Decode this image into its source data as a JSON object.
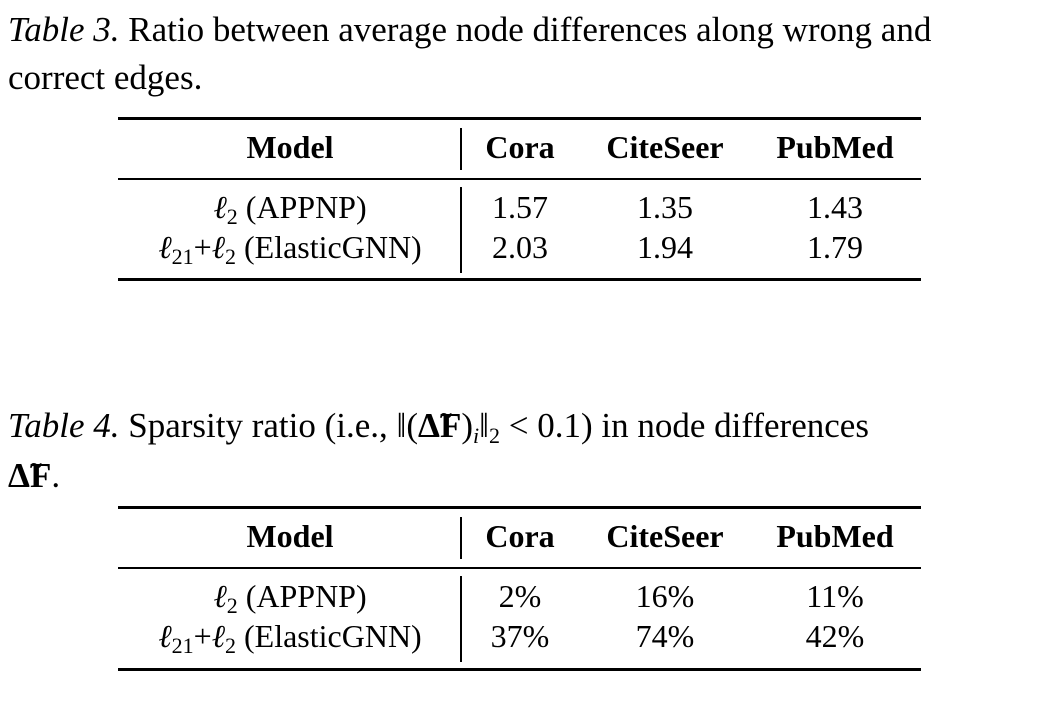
{
  "tables": [
    {
      "label": "Table 3.",
      "caption_line1": " Ratio between average node differences along wrong and",
      "caption_line2": "correct edges.",
      "headers": [
        "Model",
        "Cora",
        "CiteSeer",
        "PubMed"
      ],
      "rows": [
        {
          "model": {
            "s1": "ℓ",
            "sub1": "2",
            "plus": "",
            "s2": "",
            "sub2": "",
            "name": " (APPNP)"
          },
          "values": [
            "1.57",
            "1.35",
            "1.43"
          ]
        },
        {
          "model": {
            "s1": "ℓ",
            "sub1": "21",
            "plus": "+",
            "s2": "ℓ",
            "sub2": "2",
            "name": " (ElasticGNN)"
          },
          "values": [
            "2.03",
            "1.94",
            "1.79"
          ]
        }
      ]
    },
    {
      "label": "Table 4.",
      "caption_line1_pre": " Sparsity ratio (i.e., ‖(",
      "caption_math_delta": "Δ̃F",
      "caption_math_sub": "i",
      "caption_line1_post": "‖",
      "caption_norm_sub": "2",
      "caption_line1_end": " < 0.1) in node differences",
      "caption_line2_math": "Δ̃F",
      "caption_line2_end": ".",
      "headers": [
        "Model",
        "Cora",
        "CiteSeer",
        "PubMed"
      ],
      "rows": [
        {
          "model": {
            "s1": "ℓ",
            "sub1": "2",
            "plus": "",
            "s2": "",
            "sub2": "",
            "name": " (APPNP)"
          },
          "values": [
            "2%",
            "16%",
            "11%"
          ]
        },
        {
          "model": {
            "s1": "ℓ",
            "sub1": "21",
            "plus": "+",
            "s2": "ℓ",
            "sub2": "2",
            "name": " (ElasticGNN)"
          },
          "values": [
            "37%",
            "74%",
            "42%"
          ]
        }
      ]
    }
  ]
}
